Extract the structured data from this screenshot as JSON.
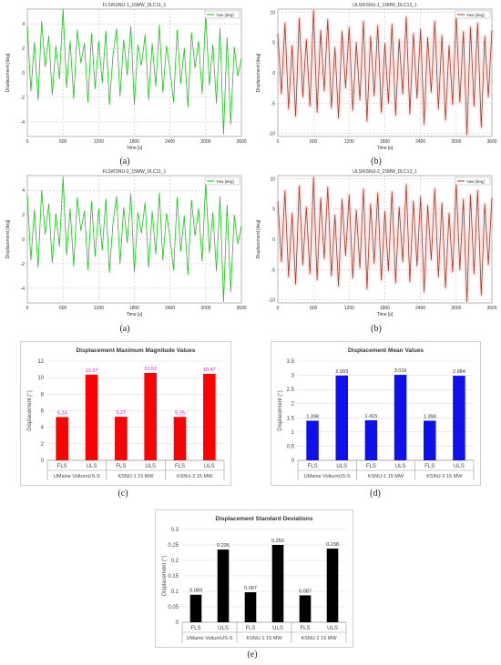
{
  "captions": {
    "a": "(a)",
    "b": "(b)",
    "c": "(c)",
    "d": "(d)",
    "e": "(e)"
  },
  "colors": {
    "green": "#19c31a",
    "brown": "#a0392a",
    "red": "#ff0000",
    "blue": "#1010ee",
    "black": "#000000",
    "pink": "#e020c0"
  },
  "chart_data": [
    {
      "id": "ts-fls-1",
      "type": "line",
      "title": "FLS/KSNU-1_15MW_DLC11_1",
      "xlabel": "Time [s]",
      "ylabel": "Displacement [deg]",
      "legend": "Yaw [deg]",
      "legend_position": "top-right",
      "xlim": [
        0,
        3600
      ],
      "ylim": [
        -5.2,
        5.2
      ],
      "xticks": [
        0,
        600,
        1200,
        1800,
        2400,
        3000,
        3600
      ],
      "yticks": [
        -4,
        -2,
        0,
        2,
        4
      ],
      "grid": true,
      "series": [
        {
          "name": "Yaw [deg]",
          "x": [
            0,
            60,
            120,
            180,
            240,
            300,
            360,
            420,
            480,
            540,
            600,
            660,
            720,
            780,
            840,
            900,
            960,
            1020,
            1080,
            1140,
            1200,
            1260,
            1320,
            1380,
            1440,
            1500,
            1560,
            1620,
            1680,
            1740,
            1800,
            1860,
            1920,
            1980,
            2040,
            2100,
            2160,
            2220,
            2280,
            2340,
            2400,
            2460,
            2520,
            2580,
            2640,
            2700,
            2760,
            2820,
            2880,
            2940,
            3000,
            3060,
            3120,
            3180,
            3240,
            3300,
            3360,
            3420,
            3480,
            3540,
            3600
          ],
          "y": [
            3.8,
            -1.5,
            2.5,
            -2.2,
            4.2,
            0.5,
            3.0,
            -1.8,
            2.2,
            -0.5,
            5.2,
            -1.2,
            2.6,
            -2.1,
            3.5,
            0.8,
            2.4,
            -2.4,
            3.2,
            -1.3,
            2.6,
            -0.8,
            3.4,
            -2.6,
            1.4,
            3.6,
            -1.9,
            2.7,
            -0.2,
            3.8,
            -2.6,
            2.3,
            0.6,
            3.1,
            -2.2,
            2.4,
            -1.1,
            3.9,
            -1.6,
            2.2,
            0.2,
            -2.4,
            3.5,
            -0.9,
            2.0,
            -2.8,
            3.3,
            0.4,
            2.6,
            -1.7,
            4.8,
            -1.0,
            2.3,
            -2.5,
            3.6,
            -5.0,
            2.9,
            -4.2,
            2.1,
            -0.3,
            1.2
          ]
        }
      ]
    },
    {
      "id": "ts-uls-1",
      "type": "line",
      "title": "ULS/KSNU-1_15MW_DLC13_1",
      "xlabel": "Time [s]",
      "ylabel": "Displacement [deg]",
      "legend": "Yaw [deg]",
      "legend_position": "top-right",
      "xlim": [
        0,
        3600
      ],
      "ylim": [
        -10.5,
        10.5
      ],
      "xticks": [
        0,
        600,
        1200,
        1800,
        2400,
        3000,
        3600
      ],
      "yticks": [
        -10,
        -5,
        0,
        5,
        10
      ],
      "grid": true,
      "series": [
        {
          "name": "Yaw [deg]",
          "x": [
            0,
            60,
            120,
            180,
            240,
            300,
            360,
            420,
            480,
            540,
            600,
            660,
            720,
            780,
            840,
            900,
            960,
            1020,
            1080,
            1140,
            1200,
            1260,
            1320,
            1380,
            1440,
            1500,
            1560,
            1620,
            1680,
            1740,
            1800,
            1860,
            1920,
            1980,
            2040,
            2100,
            2160,
            2220,
            2280,
            2340,
            2400,
            2460,
            2520,
            2580,
            2640,
            2700,
            2760,
            2820,
            2880,
            2940,
            3000,
            3060,
            3120,
            3180,
            3240,
            3300,
            3360,
            3420,
            3480,
            3540,
            3600
          ],
          "y": [
            6.5,
            -3.5,
            8.2,
            -6.0,
            4.5,
            -7.2,
            9.0,
            -4.0,
            5.5,
            -5.5,
            10.3,
            -6.5,
            7.0,
            -3.0,
            8.8,
            -5.8,
            4.2,
            -7.5,
            6.8,
            -2.5,
            7.5,
            -6.2,
            5.0,
            -4.5,
            8.5,
            -8.0,
            6.0,
            -3.8,
            7.8,
            -6.5,
            4.8,
            -5.0,
            8.0,
            -7.0,
            5.5,
            -3.5,
            9.2,
            -6.8,
            6.5,
            -4.2,
            7.2,
            -8.5,
            5.8,
            -3.2,
            8.5,
            -6.0,
            6.2,
            -7.8,
            4.5,
            -5.2,
            9.5,
            -4.8,
            6.8,
            -10.2,
            7.5,
            -5.5,
            8.2,
            -9.0,
            6.0,
            -4.0,
            7.0
          ]
        }
      ]
    },
    {
      "id": "ts-fls-2",
      "type": "line",
      "title": "FLS/KSNU-2_15MW_DLC11_1",
      "xlabel": "Time [s]",
      "ylabel": "Displacement [deg]",
      "legend": "Yaw [deg]",
      "legend_position": "top-right",
      "xlim": [
        0,
        3600
      ],
      "ylim": [
        -5.2,
        5.2
      ],
      "xticks": [
        0,
        600,
        1200,
        1800,
        2400,
        3000,
        3600
      ],
      "yticks": [
        -4,
        -2,
        0,
        2,
        4
      ],
      "grid": true,
      "series": [
        {
          "name": "Yaw [deg]",
          "x": [
            0,
            60,
            120,
            180,
            240,
            300,
            360,
            420,
            480,
            540,
            600,
            660,
            720,
            780,
            840,
            900,
            960,
            1020,
            1080,
            1140,
            1200,
            1260,
            1320,
            1380,
            1440,
            1500,
            1560,
            1620,
            1680,
            1740,
            1800,
            1860,
            1920,
            1980,
            2040,
            2100,
            2160,
            2220,
            2280,
            2340,
            2400,
            2460,
            2520,
            2580,
            2640,
            2700,
            2760,
            2820,
            2880,
            2940,
            3000,
            3060,
            3120,
            3180,
            3240,
            3300,
            3360,
            3420,
            3480,
            3540,
            3600
          ],
          "y": [
            3.6,
            -1.7,
            2.4,
            -2.3,
            4.0,
            0.4,
            2.9,
            -1.9,
            2.1,
            -0.6,
            5.1,
            -1.3,
            2.5,
            -2.2,
            3.4,
            0.7,
            2.3,
            -2.5,
            3.1,
            -1.4,
            2.5,
            -0.9,
            3.3,
            -2.7,
            1.3,
            3.5,
            -2.0,
            2.6,
            -0.3,
            3.7,
            -2.7,
            2.2,
            0.5,
            3.0,
            -2.3,
            2.3,
            -1.2,
            3.8,
            -1.7,
            2.1,
            0.1,
            -2.5,
            3.4,
            -1.0,
            1.9,
            -2.9,
            3.2,
            0.3,
            2.5,
            -1.8,
            4.7,
            -1.1,
            2.2,
            -2.6,
            3.5,
            -5.1,
            2.8,
            -4.3,
            2.0,
            -0.4,
            1.1
          ]
        }
      ]
    },
    {
      "id": "ts-uls-2",
      "type": "line",
      "title": "ULS/KSNU-2_15MW_DLC13_1",
      "xlabel": "Time [s]",
      "ylabel": "Displacement [deg]",
      "legend": "Yaw [deg]",
      "legend_position": "top-right",
      "xlim": [
        0,
        3600
      ],
      "ylim": [
        -10.5,
        10.5
      ],
      "xticks": [
        0,
        600,
        1200,
        1800,
        2400,
        3000,
        3600
      ],
      "yticks": [
        -10,
        -5,
        0,
        5,
        10
      ],
      "grid": true,
      "series": [
        {
          "name": "Yaw [deg]",
          "x": [
            0,
            60,
            120,
            180,
            240,
            300,
            360,
            420,
            480,
            540,
            600,
            660,
            720,
            780,
            840,
            900,
            960,
            1020,
            1080,
            1140,
            1200,
            1260,
            1320,
            1380,
            1440,
            1500,
            1560,
            1620,
            1680,
            1740,
            1800,
            1860,
            1920,
            1980,
            2040,
            2100,
            2160,
            2220,
            2280,
            2340,
            2400,
            2460,
            2520,
            2580,
            2640,
            2700,
            2760,
            2820,
            2880,
            2940,
            3000,
            3060,
            3120,
            3180,
            3240,
            3300,
            3360,
            3420,
            3480,
            3540,
            3600
          ],
          "y": [
            6.3,
            -3.7,
            8.0,
            -6.2,
            4.3,
            -7.4,
            8.8,
            -4.2,
            5.3,
            -5.7,
            10.2,
            -6.7,
            6.8,
            -3.2,
            8.6,
            -6.0,
            4.0,
            -7.7,
            6.6,
            -2.7,
            7.3,
            -6.4,
            4.8,
            -4.7,
            8.3,
            -8.2,
            5.8,
            -4.0,
            7.6,
            -6.7,
            4.6,
            -5.2,
            7.8,
            -7.2,
            5.3,
            -3.7,
            9.0,
            -7.0,
            6.3,
            -4.4,
            7.0,
            -8.7,
            5.6,
            -3.4,
            8.3,
            -6.2,
            6.0,
            -8.0,
            4.3,
            -5.4,
            9.3,
            -5.0,
            6.6,
            -10.3,
            7.3,
            -5.7,
            8.0,
            -9.2,
            5.8,
            -4.2,
            6.8
          ]
        }
      ]
    },
    {
      "id": "bar-max",
      "type": "bar",
      "title": "Displacement Maximum Magnitude Values",
      "ylabel": "Displacement (°)",
      "ylim": [
        0,
        12
      ],
      "yticks": [
        0,
        2,
        4,
        6,
        8,
        10,
        12
      ],
      "grid": true,
      "bar_color": "#ff0000",
      "label_color": "#e020c0",
      "categories": [
        "FLS",
        "ULS",
        "FLS",
        "ULS",
        "FLS",
        "ULS"
      ],
      "groups": [
        "UMaine VolturnUS-S",
        "KSNU-1 15 MW",
        "KSNU-2 15 MW"
      ],
      "values": [
        5.24,
        10.37,
        5.27,
        10.57,
        5.25,
        10.47
      ],
      "labels": [
        "5.24",
        "10.37",
        "5.27",
        "10.57",
        "5.25",
        "10.47"
      ]
    },
    {
      "id": "bar-mean",
      "type": "bar",
      "title": "Displacement Mean Values",
      "ylabel": "Displacement (°)",
      "ylim": [
        0,
        3.5
      ],
      "yticks": [
        0,
        0.5,
        1,
        1.5,
        2,
        2.5,
        3,
        3.5
      ],
      "grid": true,
      "bar_color": "#1010ee",
      "label_color": "#333333",
      "categories": [
        "FLS",
        "ULS",
        "FLS",
        "ULS",
        "FLS",
        "ULS"
      ],
      "groups": [
        "UMaine VolturnUS-S",
        "KSNU-1 15 MW",
        "KSNU-2 15 MW"
      ],
      "values": [
        1.398,
        2.993,
        1.415,
        3.016,
        1.398,
        2.984
      ],
      "labels": [
        "1.398",
        "2.993",
        "1.415",
        "3.016",
        "1.398",
        "2.984"
      ]
    },
    {
      "id": "bar-std",
      "type": "bar",
      "title": "Displacement Standard Deviations",
      "ylabel": "Displacement (°)",
      "ylim": [
        0,
        0.3
      ],
      "yticks": [
        0,
        0.05,
        0.1,
        0.15,
        0.2,
        0.25,
        0.3
      ],
      "grid": true,
      "bar_color": "#000000",
      "label_color": "#333333",
      "categories": [
        "FLS",
        "ULS",
        "FLS",
        "ULS",
        "FLS",
        "ULS"
      ],
      "groups": [
        "UMaine VolturnUS-S",
        "KSNU-1 15 MW",
        "KSNU-2 15 MW"
      ],
      "values": [
        0.089,
        0.235,
        0.097,
        0.25,
        0.087,
        0.238
      ],
      "labels": [
        "0.089",
        "0.235",
        "0.097",
        "0.250",
        "0.087",
        "0.238"
      ]
    }
  ]
}
